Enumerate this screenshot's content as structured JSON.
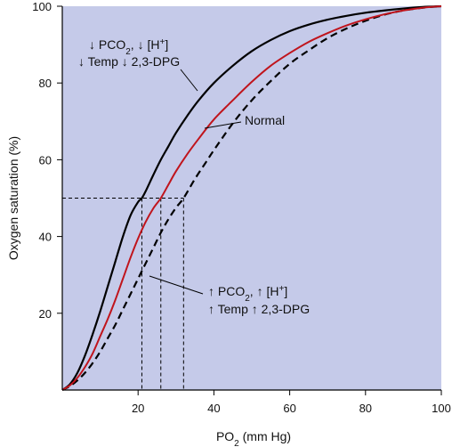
{
  "chart_data": {
    "type": "line",
    "xlabel": "PO",
    "xlabel_sub": "2",
    "xlabel_rest": " (mm Hg)",
    "ylabel": "Oxygen saturation (%)",
    "xlim": [
      0,
      100
    ],
    "ylim": [
      0,
      100
    ],
    "xticks": [
      20,
      40,
      60,
      80,
      100
    ],
    "yticks": [
      20,
      40,
      60,
      80,
      100
    ],
    "grid": false,
    "colors": {
      "plot_background": "#c5cae9",
      "normal_curve": "#c0141c",
      "shifted_curves": "#000000",
      "axis": "#000000"
    },
    "series": [
      {
        "id": "left-shift",
        "style": "solid",
        "p50": 21,
        "x": [
          0,
          2,
          4,
          6,
          8,
          10,
          12,
          14,
          16,
          18,
          20,
          21,
          22,
          24,
          26,
          28,
          30,
          33,
          36,
          40,
          45,
          50,
          55,
          60,
          65,
          70,
          75,
          80,
          85,
          90,
          95,
          100
        ],
        "y": [
          0,
          1.5,
          4.5,
          9,
          14.5,
          20.5,
          27,
          33.5,
          40,
          45.5,
          49,
          50,
          51.8,
          56,
          60,
          63.5,
          67,
          71.5,
          75.5,
          80,
          84.5,
          88.3,
          91.2,
          93.5,
          95.2,
          96.5,
          97.5,
          98.3,
          98.9,
          99.4,
          99.8,
          100
        ]
      },
      {
        "id": "normal",
        "style": "solid",
        "p50": 26,
        "x": [
          0,
          2,
          4,
          6,
          8,
          10,
          12,
          14,
          16,
          18,
          20,
          22,
          24,
          26,
          28,
          30,
          33,
          36,
          40,
          45,
          50,
          55,
          60,
          65,
          70,
          75,
          80,
          85,
          90,
          95,
          100
        ],
        "y": [
          0,
          1.2,
          3.2,
          6,
          9.5,
          14,
          18.5,
          23.5,
          29,
          34.5,
          39.5,
          43.8,
          47.3,
          50,
          53.5,
          57,
          61.5,
          65.5,
          70.5,
          75.5,
          80.3,
          84.5,
          87.8,
          90.7,
          93,
          95,
          96.6,
          97.9,
          98.9,
          99.6,
          100
        ]
      },
      {
        "id": "right-shift",
        "style": "dashed",
        "p50": 32,
        "x": [
          0,
          2,
          4,
          6,
          8,
          10,
          12,
          14,
          16,
          18,
          20,
          22,
          24,
          26,
          28,
          30,
          32,
          35,
          38,
          40,
          45,
          50,
          55,
          60,
          65,
          70,
          75,
          80,
          85,
          90,
          95,
          100
        ],
        "y": [
          0,
          1,
          2.5,
          4.5,
          7,
          10,
          13.5,
          17,
          21,
          25,
          29,
          33,
          37,
          41,
          44.5,
          47.5,
          50,
          55,
          59.5,
          62.5,
          69.5,
          75.5,
          80.5,
          85,
          88.5,
          91.7,
          94.2,
          96.2,
          97.8,
          98.9,
          99.6,
          100
        ]
      }
    ],
    "p50_line": {
      "y": 50,
      "x_values": [
        21,
        26,
        32
      ]
    },
    "annotations": [
      {
        "id": "left-shift-label",
        "line1": [
          {
            "t": "↓ PCO"
          },
          {
            "t": "2",
            "sub": true
          },
          {
            "t": ", ↓ [H"
          },
          {
            "t": "+",
            "sup": true
          },
          {
            "t": "]"
          }
        ],
        "line2": [
          {
            "t": "↓ Temp ↓ 2,3-DPG"
          }
        ]
      },
      {
        "id": "normal-label",
        "line1": [
          {
            "t": "Normal"
          }
        ]
      },
      {
        "id": "right-shift-label",
        "line1": [
          {
            "t": "↑ PCO"
          },
          {
            "t": "2",
            "sub": true
          },
          {
            "t": ", ↑ [H"
          },
          {
            "t": "+",
            "sup": true
          },
          {
            "t": "]"
          }
        ],
        "line2": [
          {
            "t": "↑ Temp ↑ 2,3-DPG"
          }
        ]
      }
    ]
  }
}
